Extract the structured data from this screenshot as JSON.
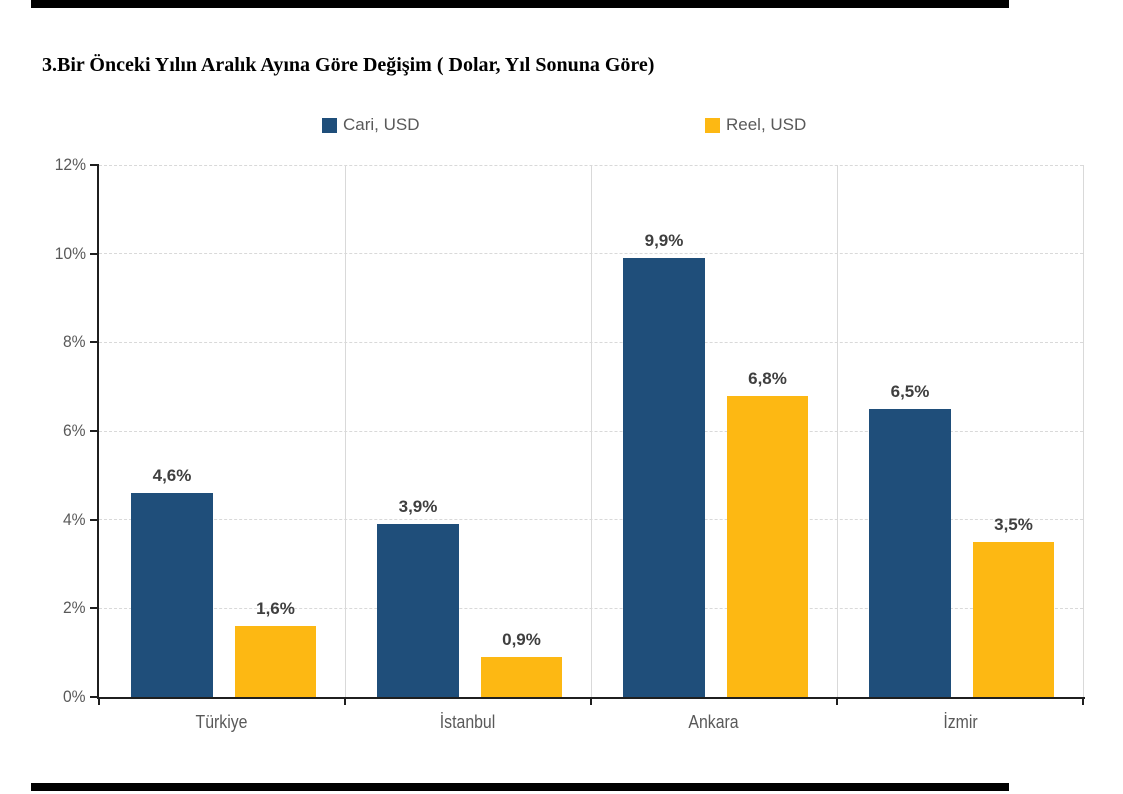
{
  "chart_data": {
    "type": "bar",
    "title": "3.Bir Önceki Yılın Aralık Ayına Göre Değişim ( Dolar, Yıl Sonuna Göre)",
    "categories": [
      "Türkiye",
      "İstanbul",
      "Ankara",
      "İzmir"
    ],
    "series": [
      {
        "name": "Cari, USD",
        "color": "#1F4E7A",
        "values": [
          4.6,
          3.9,
          9.9,
          6.5
        ],
        "labels": [
          "4,6%",
          "3,9%",
          "9,9%",
          "6,5%"
        ]
      },
      {
        "name": "Reel, USD",
        "color": "#FDB813",
        "values": [
          1.6,
          0.9,
          6.8,
          3.5
        ],
        "labels": [
          "1,6%",
          "0,9%",
          "6,8%",
          "3,5%"
        ]
      }
    ],
    "y_axis": {
      "min": 0,
      "max": 12,
      "step": 2,
      "tick_labels": [
        "0%",
        "2%",
        "4%",
        "6%",
        "8%",
        "10%",
        "12%"
      ],
      "format": "percent"
    },
    "legend_position": "top",
    "grid": true,
    "colors": {
      "axis": "#1F1F1F",
      "gridline": "#D9D9D9",
      "tick_label": "#595959",
      "data_label": "#3F3F3F",
      "title": "#000000"
    }
  }
}
